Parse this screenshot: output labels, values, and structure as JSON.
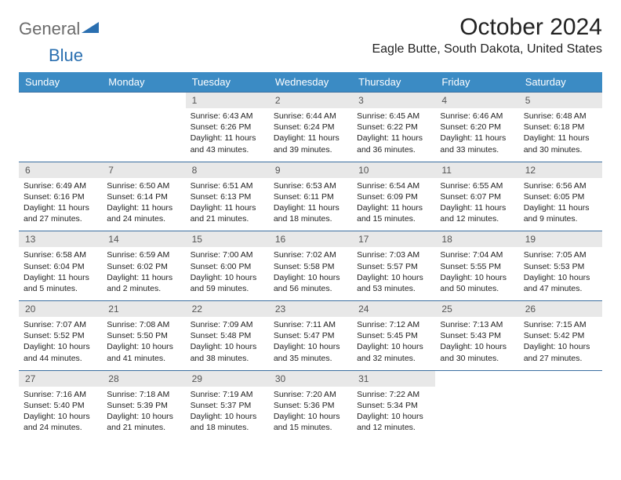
{
  "logo": {
    "word1": "General",
    "word2": "Blue"
  },
  "title": "October 2024",
  "location": "Eagle Butte, South Dakota, United States",
  "colors": {
    "header_bg": "#3b8bc4",
    "header_text": "#ffffff",
    "daynum_bg": "#e8e8e8",
    "row_border": "#3b6fa0",
    "logo_gray": "#6b6b6b",
    "logo_blue": "#2a6fb0"
  },
  "weekdays": [
    "Sunday",
    "Monday",
    "Tuesday",
    "Wednesday",
    "Thursday",
    "Friday",
    "Saturday"
  ],
  "weeks": [
    [
      {
        "n": "",
        "sr": "",
        "ss": "",
        "dl": ""
      },
      {
        "n": "",
        "sr": "",
        "ss": "",
        "dl": ""
      },
      {
        "n": "1",
        "sr": "Sunrise: 6:43 AM",
        "ss": "Sunset: 6:26 PM",
        "dl": "Daylight: 11 hours and 43 minutes."
      },
      {
        "n": "2",
        "sr": "Sunrise: 6:44 AM",
        "ss": "Sunset: 6:24 PM",
        "dl": "Daylight: 11 hours and 39 minutes."
      },
      {
        "n": "3",
        "sr": "Sunrise: 6:45 AM",
        "ss": "Sunset: 6:22 PM",
        "dl": "Daylight: 11 hours and 36 minutes."
      },
      {
        "n": "4",
        "sr": "Sunrise: 6:46 AM",
        "ss": "Sunset: 6:20 PM",
        "dl": "Daylight: 11 hours and 33 minutes."
      },
      {
        "n": "5",
        "sr": "Sunrise: 6:48 AM",
        "ss": "Sunset: 6:18 PM",
        "dl": "Daylight: 11 hours and 30 minutes."
      }
    ],
    [
      {
        "n": "6",
        "sr": "Sunrise: 6:49 AM",
        "ss": "Sunset: 6:16 PM",
        "dl": "Daylight: 11 hours and 27 minutes."
      },
      {
        "n": "7",
        "sr": "Sunrise: 6:50 AM",
        "ss": "Sunset: 6:14 PM",
        "dl": "Daylight: 11 hours and 24 minutes."
      },
      {
        "n": "8",
        "sr": "Sunrise: 6:51 AM",
        "ss": "Sunset: 6:13 PM",
        "dl": "Daylight: 11 hours and 21 minutes."
      },
      {
        "n": "9",
        "sr": "Sunrise: 6:53 AM",
        "ss": "Sunset: 6:11 PM",
        "dl": "Daylight: 11 hours and 18 minutes."
      },
      {
        "n": "10",
        "sr": "Sunrise: 6:54 AM",
        "ss": "Sunset: 6:09 PM",
        "dl": "Daylight: 11 hours and 15 minutes."
      },
      {
        "n": "11",
        "sr": "Sunrise: 6:55 AM",
        "ss": "Sunset: 6:07 PM",
        "dl": "Daylight: 11 hours and 12 minutes."
      },
      {
        "n": "12",
        "sr": "Sunrise: 6:56 AM",
        "ss": "Sunset: 6:05 PM",
        "dl": "Daylight: 11 hours and 9 minutes."
      }
    ],
    [
      {
        "n": "13",
        "sr": "Sunrise: 6:58 AM",
        "ss": "Sunset: 6:04 PM",
        "dl": "Daylight: 11 hours and 5 minutes."
      },
      {
        "n": "14",
        "sr": "Sunrise: 6:59 AM",
        "ss": "Sunset: 6:02 PM",
        "dl": "Daylight: 11 hours and 2 minutes."
      },
      {
        "n": "15",
        "sr": "Sunrise: 7:00 AM",
        "ss": "Sunset: 6:00 PM",
        "dl": "Daylight: 10 hours and 59 minutes."
      },
      {
        "n": "16",
        "sr": "Sunrise: 7:02 AM",
        "ss": "Sunset: 5:58 PM",
        "dl": "Daylight: 10 hours and 56 minutes."
      },
      {
        "n": "17",
        "sr": "Sunrise: 7:03 AM",
        "ss": "Sunset: 5:57 PM",
        "dl": "Daylight: 10 hours and 53 minutes."
      },
      {
        "n": "18",
        "sr": "Sunrise: 7:04 AM",
        "ss": "Sunset: 5:55 PM",
        "dl": "Daylight: 10 hours and 50 minutes."
      },
      {
        "n": "19",
        "sr": "Sunrise: 7:05 AM",
        "ss": "Sunset: 5:53 PM",
        "dl": "Daylight: 10 hours and 47 minutes."
      }
    ],
    [
      {
        "n": "20",
        "sr": "Sunrise: 7:07 AM",
        "ss": "Sunset: 5:52 PM",
        "dl": "Daylight: 10 hours and 44 minutes."
      },
      {
        "n": "21",
        "sr": "Sunrise: 7:08 AM",
        "ss": "Sunset: 5:50 PM",
        "dl": "Daylight: 10 hours and 41 minutes."
      },
      {
        "n": "22",
        "sr": "Sunrise: 7:09 AM",
        "ss": "Sunset: 5:48 PM",
        "dl": "Daylight: 10 hours and 38 minutes."
      },
      {
        "n": "23",
        "sr": "Sunrise: 7:11 AM",
        "ss": "Sunset: 5:47 PM",
        "dl": "Daylight: 10 hours and 35 minutes."
      },
      {
        "n": "24",
        "sr": "Sunrise: 7:12 AM",
        "ss": "Sunset: 5:45 PM",
        "dl": "Daylight: 10 hours and 32 minutes."
      },
      {
        "n": "25",
        "sr": "Sunrise: 7:13 AM",
        "ss": "Sunset: 5:43 PM",
        "dl": "Daylight: 10 hours and 30 minutes."
      },
      {
        "n": "26",
        "sr": "Sunrise: 7:15 AM",
        "ss": "Sunset: 5:42 PM",
        "dl": "Daylight: 10 hours and 27 minutes."
      }
    ],
    [
      {
        "n": "27",
        "sr": "Sunrise: 7:16 AM",
        "ss": "Sunset: 5:40 PM",
        "dl": "Daylight: 10 hours and 24 minutes."
      },
      {
        "n": "28",
        "sr": "Sunrise: 7:18 AM",
        "ss": "Sunset: 5:39 PM",
        "dl": "Daylight: 10 hours and 21 minutes."
      },
      {
        "n": "29",
        "sr": "Sunrise: 7:19 AM",
        "ss": "Sunset: 5:37 PM",
        "dl": "Daylight: 10 hours and 18 minutes."
      },
      {
        "n": "30",
        "sr": "Sunrise: 7:20 AM",
        "ss": "Sunset: 5:36 PM",
        "dl": "Daylight: 10 hours and 15 minutes."
      },
      {
        "n": "31",
        "sr": "Sunrise: 7:22 AM",
        "ss": "Sunset: 5:34 PM",
        "dl": "Daylight: 10 hours and 12 minutes."
      },
      {
        "n": "",
        "sr": "",
        "ss": "",
        "dl": ""
      },
      {
        "n": "",
        "sr": "",
        "ss": "",
        "dl": ""
      }
    ]
  ]
}
